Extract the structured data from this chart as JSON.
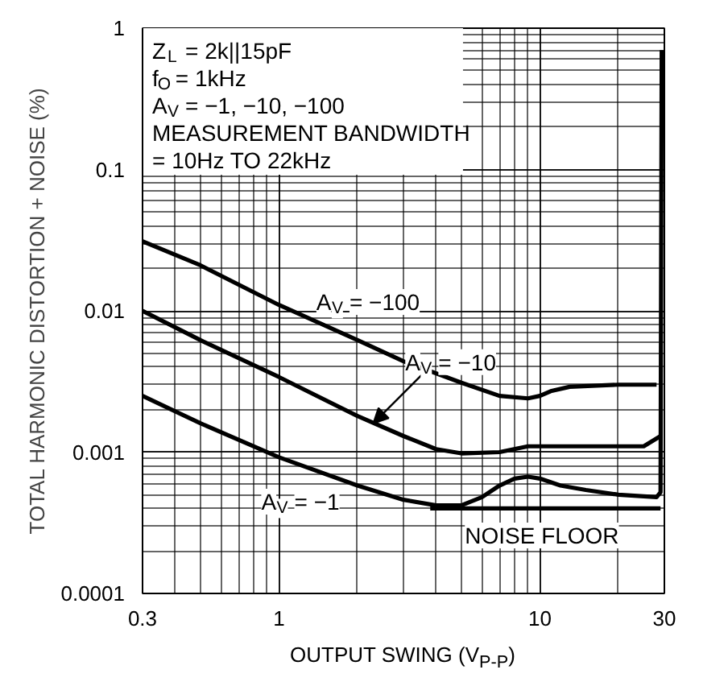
{
  "chart_data": {
    "type": "line",
    "xlabel": "OUTPUT SWING (V$_{P-P}$)",
    "ylabel": "TOTAL HARMONIC DISTORTION + NOISE (%)",
    "log": "xy",
    "grid": true,
    "line_style": "solid",
    "xlim": [
      0.3,
      30
    ],
    "xticks": [
      0.3,
      1,
      10,
      30
    ],
    "ylim": [
      0.0001,
      1
    ],
    "yticks": [
      0.0001,
      0.001,
      0.01,
      0.1,
      1
    ],
    "series": [
      {
        "color": "#000000",
        "x": [
          0.3,
          0.5,
          1,
          2,
          3,
          5,
          7,
          9,
          10,
          11,
          13,
          20,
          28
        ],
        "values": [
          0.031,
          0.021,
          0.011,
          0.0062,
          0.0044,
          0.0031,
          0.0025,
          0.0024,
          0.0025,
          0.0027,
          0.0029,
          0.003,
          0.003
        ]
      },
      {
        "color": "#000000",
        "x": [
          0.3,
          0.5,
          1,
          2,
          3,
          4,
          5,
          7,
          9,
          15,
          25,
          29
        ],
        "values": [
          0.01,
          0.0062,
          0.0034,
          0.0018,
          0.0013,
          0.00105,
          0.00098,
          0.001,
          0.0011,
          0.0011,
          0.0011,
          0.0013
        ]
      },
      {
        "color": "#000000",
        "x": [
          0.3,
          0.5,
          1,
          2,
          3,
          4,
          5,
          6,
          7,
          8,
          9,
          10,
          12,
          15,
          20,
          28,
          29,
          29.3
        ],
        "values": [
          0.0025,
          0.0016,
          0.00092,
          0.00058,
          0.00046,
          0.00042,
          0.00042,
          0.00048,
          0.00058,
          0.00065,
          0.00067,
          0.00065,
          0.00058,
          0.00054,
          0.0005,
          0.00048,
          0.00052,
          0.7
        ]
      },
      {
        "color": "#000000",
        "x": [
          3.8,
          29
        ],
        "values": [
          0.0004,
          0.0004
        ]
      }
    ],
    "annotations": [
      "Z$_{L}$ = 2k||15pF",
      "f$_{O}$ = 1kHz",
      "A$_{V}$ = −1, −10, −100",
      "MEASUREMENT BANDWIDTH",
      "= 10Hz TO 22kHz",
      "A$_{V}$ = −100",
      {
        "text": "A$_{V}$ = −10",
        "x": 2.3,
        "y": 0.0016
      },
      "A$_{V}$ = −1",
      "NOISE FLOOR"
    ]
  }
}
